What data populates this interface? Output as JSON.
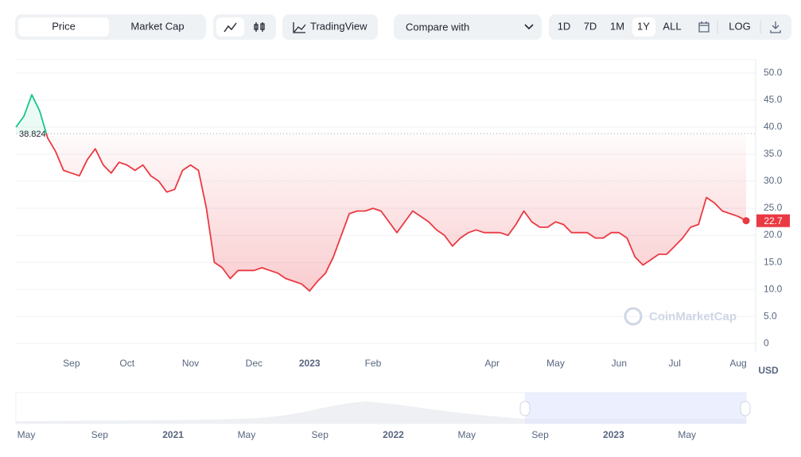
{
  "toolbar": {
    "tabs": [
      "Price",
      "Market Cap"
    ],
    "tradingview": "TradingView",
    "compare": "Compare with",
    "ranges": [
      "1D",
      "7D",
      "1M",
      "1Y",
      "ALL"
    ],
    "log": "LOG"
  },
  "chart_data": {
    "type": "line",
    "categories": [
      null,
      null,
      null,
      null,
      null,
      null,
      null,
      "Sep",
      null,
      null,
      null,
      null,
      null,
      null,
      "Oct",
      null,
      null,
      null,
      null,
      null,
      null,
      null,
      "Nov",
      null,
      null,
      null,
      null,
      null,
      null,
      null,
      "Dec",
      null,
      null,
      null,
      null,
      null,
      null,
      "2023",
      null,
      null,
      null,
      null,
      null,
      null,
      null,
      "Feb",
      null,
      null,
      null,
      null,
      null,
      null,
      null,
      null,
      null,
      null,
      null,
      null,
      null,
      null,
      "Apr",
      null,
      null,
      null,
      null,
      null,
      null,
      null,
      "May",
      null,
      null,
      null,
      null,
      null,
      null,
      null,
      "Jun",
      null,
      null,
      null,
      null,
      null,
      null,
      "Jul",
      null,
      null,
      null,
      null,
      null,
      null,
      null,
      "Aug",
      null
    ],
    "series": [
      {
        "name": "Price",
        "color": "#ea3943",
        "up_color": "#16c784",
        "values": [
          40,
          42,
          46,
          43,
          38,
          35.5,
          32,
          31.5,
          31,
          34,
          36,
          33,
          31.5,
          33.5,
          33,
          32,
          33,
          31,
          30,
          28,
          28.5,
          32,
          33,
          32,
          25,
          15,
          14,
          12,
          13.5,
          13.5,
          13.5,
          14,
          13.5,
          13,
          12,
          11.5,
          11,
          9.7,
          11.5,
          13,
          16,
          20,
          24,
          24.5,
          24.5,
          25,
          24.5,
          22.5,
          20.5,
          22.5,
          24.5,
          23.5,
          22.5,
          21,
          20,
          18,
          19.5,
          20.5,
          21,
          20.5,
          20.5,
          20.5,
          20,
          22,
          24.5,
          22.5,
          21.5,
          21.5,
          22.5,
          22,
          20.5,
          20.5,
          20.5,
          19.5,
          19.5,
          20.5,
          20.5,
          19.5,
          16,
          14.5,
          15.5,
          16.5,
          16.5,
          18,
          19.5,
          21.5,
          22,
          27,
          26,
          24.5,
          24,
          23.5,
          22.7
        ]
      }
    ],
    "reference": 38.824,
    "ylim": [
      -1.6,
      52.5
    ],
    "yticks": [
      0,
      {
        "value": 5,
        "label": "5.0"
      },
      {
        "value": 10,
        "label": "10.0"
      },
      {
        "value": 15,
        "label": "15.0"
      },
      {
        "value": 20,
        "label": "20.0"
      },
      {
        "value": 25,
        "label": "25.0"
      },
      {
        "value": 30,
        "label": "30.0"
      },
      {
        "value": 35,
        "label": "35.0"
      },
      {
        "value": 40,
        "label": "40.0"
      },
      {
        "value": 45,
        "label": "45.0"
      },
      {
        "value": 50,
        "label": "50.0"
      }
    ],
    "grid": true,
    "unit": "USD",
    "watermark": "CoinMarketCap",
    "navigator_labels": [
      "May",
      "Sep",
      "2021",
      "May",
      "Sep",
      "2022",
      "May",
      "Sep",
      "2023",
      "May"
    ]
  }
}
